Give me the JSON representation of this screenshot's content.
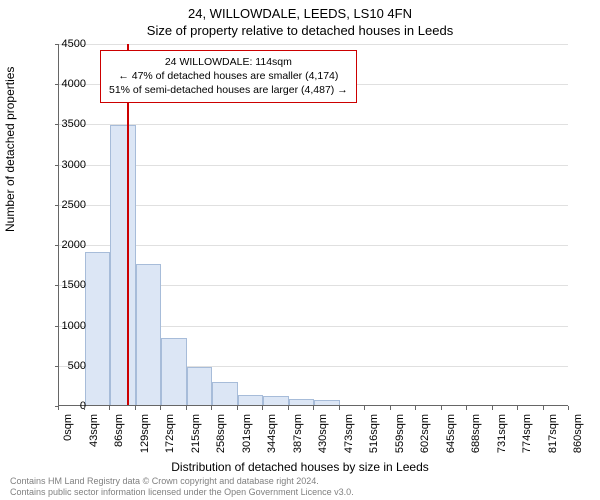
{
  "titles": {
    "main": "24, WILLOWDALE, LEEDS, LS10 4FN",
    "sub": "Size of property relative to detached houses in Leeds"
  },
  "axes": {
    "ylabel": "Number of detached properties",
    "xlabel": "Distribution of detached houses by size in Leeds",
    "ylim": [
      0,
      4500
    ],
    "ytick_step": 500,
    "label_fontsize": 12,
    "tick_fontsize": 11
  },
  "xticks": [
    "0sqm",
    "43sqm",
    "86sqm",
    "129sqm",
    "172sqm",
    "215sqm",
    "258sqm",
    "301sqm",
    "344sqm",
    "387sqm",
    "430sqm",
    "473sqm",
    "516sqm",
    "559sqm",
    "602sqm",
    "645sqm",
    "688sqm",
    "731sqm",
    "774sqm",
    "817sqm",
    "860sqm"
  ],
  "histogram": {
    "type": "histogram",
    "bin_width_sqm": 43,
    "values": [
      0,
      1900,
      3480,
      1750,
      830,
      470,
      290,
      130,
      110,
      80,
      60,
      0,
      0,
      0,
      0,
      0,
      0,
      0,
      0,
      0
    ],
    "bar_fill": "#dce6f5",
    "bar_stroke": "#a7bcd9",
    "bar_stroke_width": 1
  },
  "marker": {
    "position_sqm": 114,
    "color": "#cc0000"
  },
  "annotation": {
    "lines": [
      "24 WILLOWDALE: 114sqm",
      "← 47% of detached houses are smaller (4,174)",
      "51% of semi-detached houses are larger (4,487) →"
    ],
    "border_color": "#cc0000",
    "background": "#ffffff",
    "fontsize": 10.5
  },
  "colors": {
    "background": "#ffffff",
    "grid": "#e0e0e0",
    "axis": "#666666",
    "text": "#000000",
    "footer_text": "#808080"
  },
  "footer": {
    "line1": "Contains HM Land Registry data © Crown copyright and database right 2024.",
    "line2": "Contains public sector information licensed under the Open Government Licence v3.0."
  }
}
